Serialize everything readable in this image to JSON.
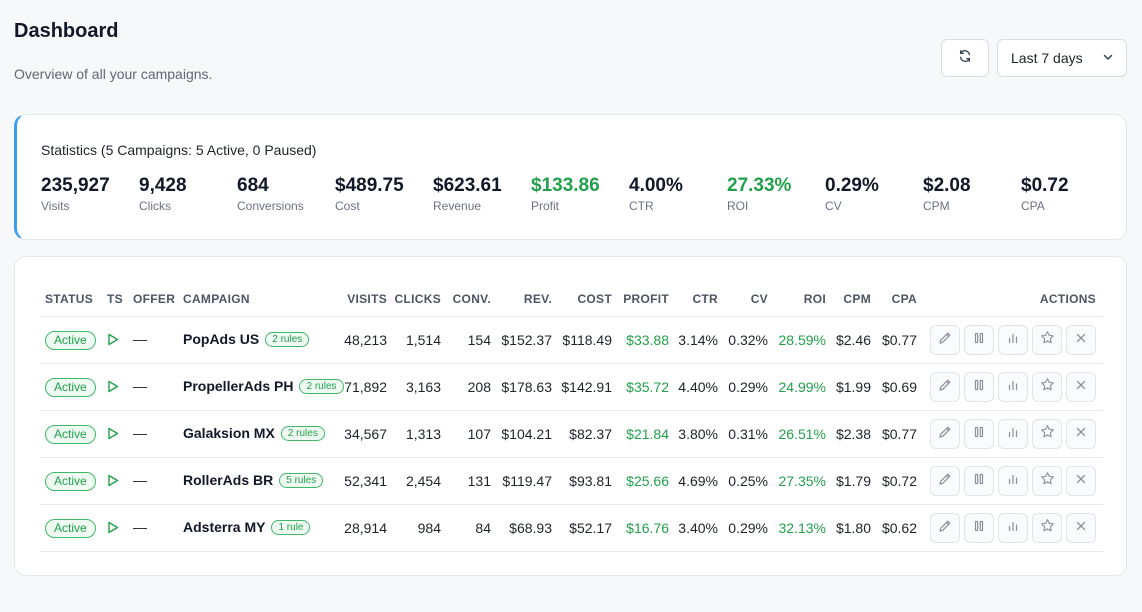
{
  "header": {
    "title": "Dashboard",
    "subtitle": "Overview of all your campaigns."
  },
  "toolbar": {
    "refresh_icon": "refresh-icon",
    "date_range": "Last 7 days",
    "date_range_icon": "chevron-down-icon"
  },
  "stats": {
    "title": "Statistics (5 Campaigns: 5 Active, 0 Paused)",
    "items": [
      {
        "value": "235,927",
        "label": "Visits"
      },
      {
        "value": "9,428",
        "label": "Clicks"
      },
      {
        "value": "684",
        "label": "Conversions"
      },
      {
        "value": "$489.75",
        "label": "Cost"
      },
      {
        "value": "$623.61",
        "label": "Revenue"
      },
      {
        "value": "$133.86",
        "label": "Profit"
      },
      {
        "value": "4.00%",
        "label": "CTR"
      },
      {
        "value": "27.33%",
        "label": "ROI"
      },
      {
        "value": "0.29%",
        "label": "CV"
      },
      {
        "value": "$2.08",
        "label": "CPM"
      },
      {
        "value": "$0.72",
        "label": "CPA"
      }
    ],
    "positive_color": "#22a04b",
    "accent_color": "#3b9ef0"
  },
  "table": {
    "headers": {
      "status": "STATUS",
      "ts": "TS",
      "offer": "OFFER",
      "campaign": "CAMPAIGN",
      "visits": "VISITS",
      "clicks": "CLICKS",
      "conv": "CONV.",
      "rev": "REV.",
      "cost": "COST",
      "profit": "PROFIT",
      "ctr": "CTR",
      "cv": "CV",
      "roi": "ROI",
      "cpm": "CPM",
      "cpa": "CPA",
      "actions": "ACTIONS"
    },
    "rows": [
      {
        "status": "Active",
        "offer": "—",
        "campaign": "PopAds US",
        "rules": "2 rules",
        "visits": "48,213",
        "clicks": "1,514",
        "conv": "154",
        "rev": "$152.37",
        "cost": "$118.49",
        "profit": "$33.88",
        "ctr": "3.14%",
        "cv": "0.32%",
        "roi": "28.59%",
        "cpm": "$2.46",
        "cpa": "$0.77"
      },
      {
        "status": "Active",
        "offer": "—",
        "campaign": "PropellerAds PH",
        "rules": "2 rules",
        "visits": "71,892",
        "clicks": "3,163",
        "conv": "208",
        "rev": "$178.63",
        "cost": "$142.91",
        "profit": "$35.72",
        "ctr": "4.40%",
        "cv": "0.29%",
        "roi": "24.99%",
        "cpm": "$1.99",
        "cpa": "$0.69"
      },
      {
        "status": "Active",
        "offer": "—",
        "campaign": "Galaksion MX",
        "rules": "2 rules",
        "visits": "34,567",
        "clicks": "1,313",
        "conv": "107",
        "rev": "$104.21",
        "cost": "$82.37",
        "profit": "$21.84",
        "ctr": "3.80%",
        "cv": "0.31%",
        "roi": "26.51%",
        "cpm": "$2.38",
        "cpa": "$0.77"
      },
      {
        "status": "Active",
        "offer": "—",
        "campaign": "RollerAds BR",
        "rules": "5 rules",
        "visits": "52,341",
        "clicks": "2,454",
        "conv": "131",
        "rev": "$119.47",
        "cost": "$93.81",
        "profit": "$25.66",
        "ctr": "4.69%",
        "cv": "0.25%",
        "roi": "27.35%",
        "cpm": "$1.79",
        "cpa": "$0.72"
      },
      {
        "status": "Active",
        "offer": "—",
        "campaign": "Adsterra MY",
        "rules": "1 rule",
        "visits": "28,914",
        "clicks": "984",
        "conv": "84",
        "rev": "$68.93",
        "cost": "$52.17",
        "profit": "$16.76",
        "ctr": "3.40%",
        "cv": "0.29%",
        "roi": "32.13%",
        "cpm": "$1.80",
        "cpa": "$0.62"
      }
    ],
    "row_actions": [
      "edit-icon",
      "pause-icon",
      "chart-icon",
      "star-icon",
      "close-icon"
    ]
  }
}
